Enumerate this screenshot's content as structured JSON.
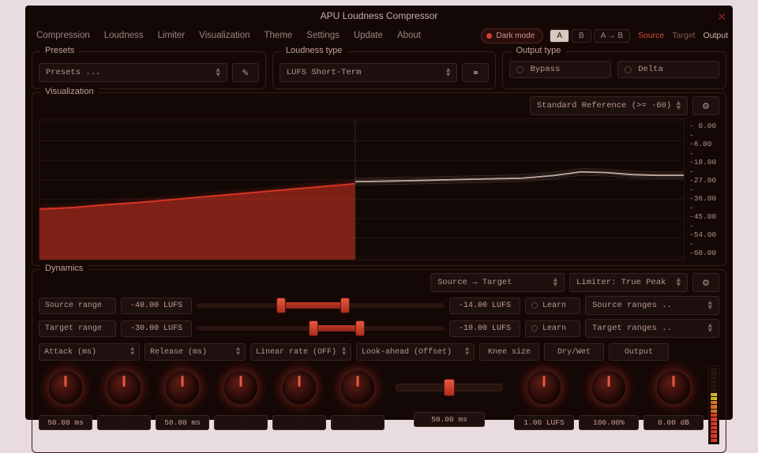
{
  "title": "APU Loudness Compressor",
  "menu": [
    "Compression",
    "Loudness",
    "Limiter",
    "Visualization",
    "Theme",
    "Settings",
    "Update",
    "About"
  ],
  "dark_mode_label": "Dark mode",
  "ab": {
    "a": "A",
    "b": "B",
    "copy": "A → B"
  },
  "io": {
    "source": "Source",
    "target": "Target",
    "output": "Output"
  },
  "presets": {
    "legend": "Presets",
    "selected": "Presets ..."
  },
  "loudness_type": {
    "legend": "Loudness type",
    "selected": "LUFS Short-Term"
  },
  "output_type": {
    "legend": "Output type",
    "opt1": "Bypass",
    "opt2": "Delta"
  },
  "viz": {
    "legend": "Visualization",
    "reference": "Standard Reference (>= -60)",
    "y_ticks": [
      "0.00",
      "-6.00",
      "-18.00",
      "-27.00",
      "-36.00",
      "-45.00",
      "-54.00",
      "-60.00"
    ],
    "grid_color": "#2a1410",
    "bg_color": "#120806",
    "series": {
      "source": {
        "color": "#d83424",
        "fill_opacity": 0.55,
        "points": [
          [
            0,
            0.64
          ],
          [
            0.05,
            0.63
          ],
          [
            0.1,
            0.61
          ],
          [
            0.15,
            0.595
          ],
          [
            0.2,
            0.575
          ],
          [
            0.25,
            0.555
          ],
          [
            0.3,
            0.535
          ],
          [
            0.35,
            0.515
          ],
          [
            0.4,
            0.495
          ],
          [
            0.45,
            0.475
          ],
          [
            0.49,
            0.46
          ]
        ],
        "x_end": 0.49
      },
      "target": {
        "color": "#d0bab0",
        "points": [
          [
            0.49,
            0.445
          ],
          [
            0.55,
            0.44
          ],
          [
            0.6,
            0.435
          ],
          [
            0.65,
            0.43
          ],
          [
            0.7,
            0.425
          ],
          [
            0.75,
            0.42
          ],
          [
            0.8,
            0.4
          ],
          [
            0.84,
            0.375
          ],
          [
            0.88,
            0.38
          ],
          [
            0.92,
            0.395
          ],
          [
            0.96,
            0.4
          ],
          [
            1.0,
            0.4
          ]
        ]
      }
    }
  },
  "dyn": {
    "legend": "Dynamics",
    "flow": "Source → Target",
    "limiter": "Limiter: True Peak",
    "source_range": {
      "label": "Source range",
      "low": "-40.00 LUFS",
      "high": "-14.00 LUFS",
      "slider_lo": 0.34,
      "slider_hi": 0.6,
      "learn": "Learn",
      "presets": "Source ranges .."
    },
    "target_range": {
      "label": "Target range",
      "low": "-30.00 LUFS",
      "high": "-10.00 LUFS",
      "slider_lo": 0.47,
      "slider_hi": 0.66,
      "learn": "Learn",
      "presets": "Target ranges .."
    },
    "knob_headers": {
      "attack": "Attack (ms)",
      "release": "Release (ms)",
      "linear": "Linear rate (OFF)",
      "look": "Look-ahead (Offset)",
      "knee": "Knee size",
      "drywet": "Dry/Wet",
      "output": "Output"
    },
    "readouts": {
      "attack": "50.00 ms",
      "attack2": ".",
      "release": "50.00 ms",
      "release2": ".",
      "linear": ".",
      "linear2": ".",
      "look": "50.00 ms",
      "knee": "1.00 LUFS",
      "drywet": "100.00%",
      "output": "0.00 dB"
    }
  },
  "colors": {
    "accent": "#d83424",
    "panel_border": "#3a1c16",
    "control_bg": "#1e100e",
    "control_border": "#3a2420",
    "text": "#b89890"
  }
}
